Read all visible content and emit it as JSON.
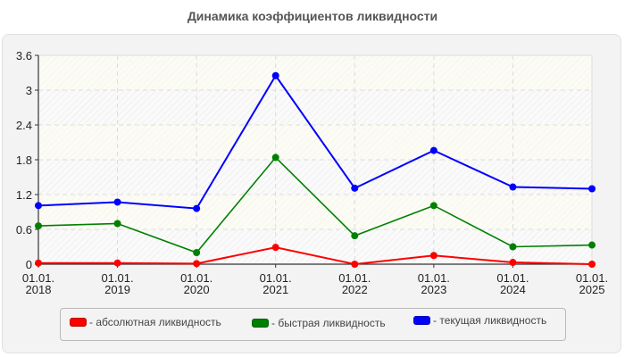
{
  "title": "Динамика коэффициентов ликвидности",
  "chart_data": {
    "type": "line",
    "title": "Динамика коэффициентов ликвидности",
    "xlabel": "",
    "ylabel": "",
    "categories": [
      "01.01.\n2018",
      "01.01.\n2019",
      "01.01.\n2020",
      "01.01.\n2021",
      "01.01.\n2022",
      "01.01.\n2023",
      "01.01.\n2024",
      "01.01.\n2025"
    ],
    "category_lines": [
      [
        "01.01.",
        "2018"
      ],
      [
        "01.01.",
        "2019"
      ],
      [
        "01.01.",
        "2020"
      ],
      [
        "01.01.",
        "2021"
      ],
      [
        "01.01.",
        "2022"
      ],
      [
        "01.01.",
        "2023"
      ],
      [
        "01.01.",
        "2024"
      ],
      [
        "01.01.",
        "2025"
      ]
    ],
    "ylim": [
      0,
      3.6
    ],
    "yticks": [
      "0",
      "0.6",
      "1.2",
      "1.8",
      "2.4",
      "3",
      "3.6"
    ],
    "grid": true,
    "legend_position": "bottom",
    "series": [
      {
        "name": "- абсолютная ликвидность",
        "color": "#ff0000",
        "values": [
          0.02,
          0.02,
          0.01,
          0.29,
          0.0,
          0.15,
          0.03,
          0.0
        ]
      },
      {
        "name": "- быстрая ликвидность",
        "color": "#008000",
        "values": [
          0.66,
          0.7,
          0.2,
          1.84,
          0.49,
          1.01,
          0.3,
          0.33
        ]
      },
      {
        "name": "- текущая ликвидность",
        "color": "#0000ff",
        "values": [
          1.01,
          1.07,
          0.96,
          3.25,
          1.31,
          1.96,
          1.33,
          1.3
        ]
      }
    ]
  }
}
